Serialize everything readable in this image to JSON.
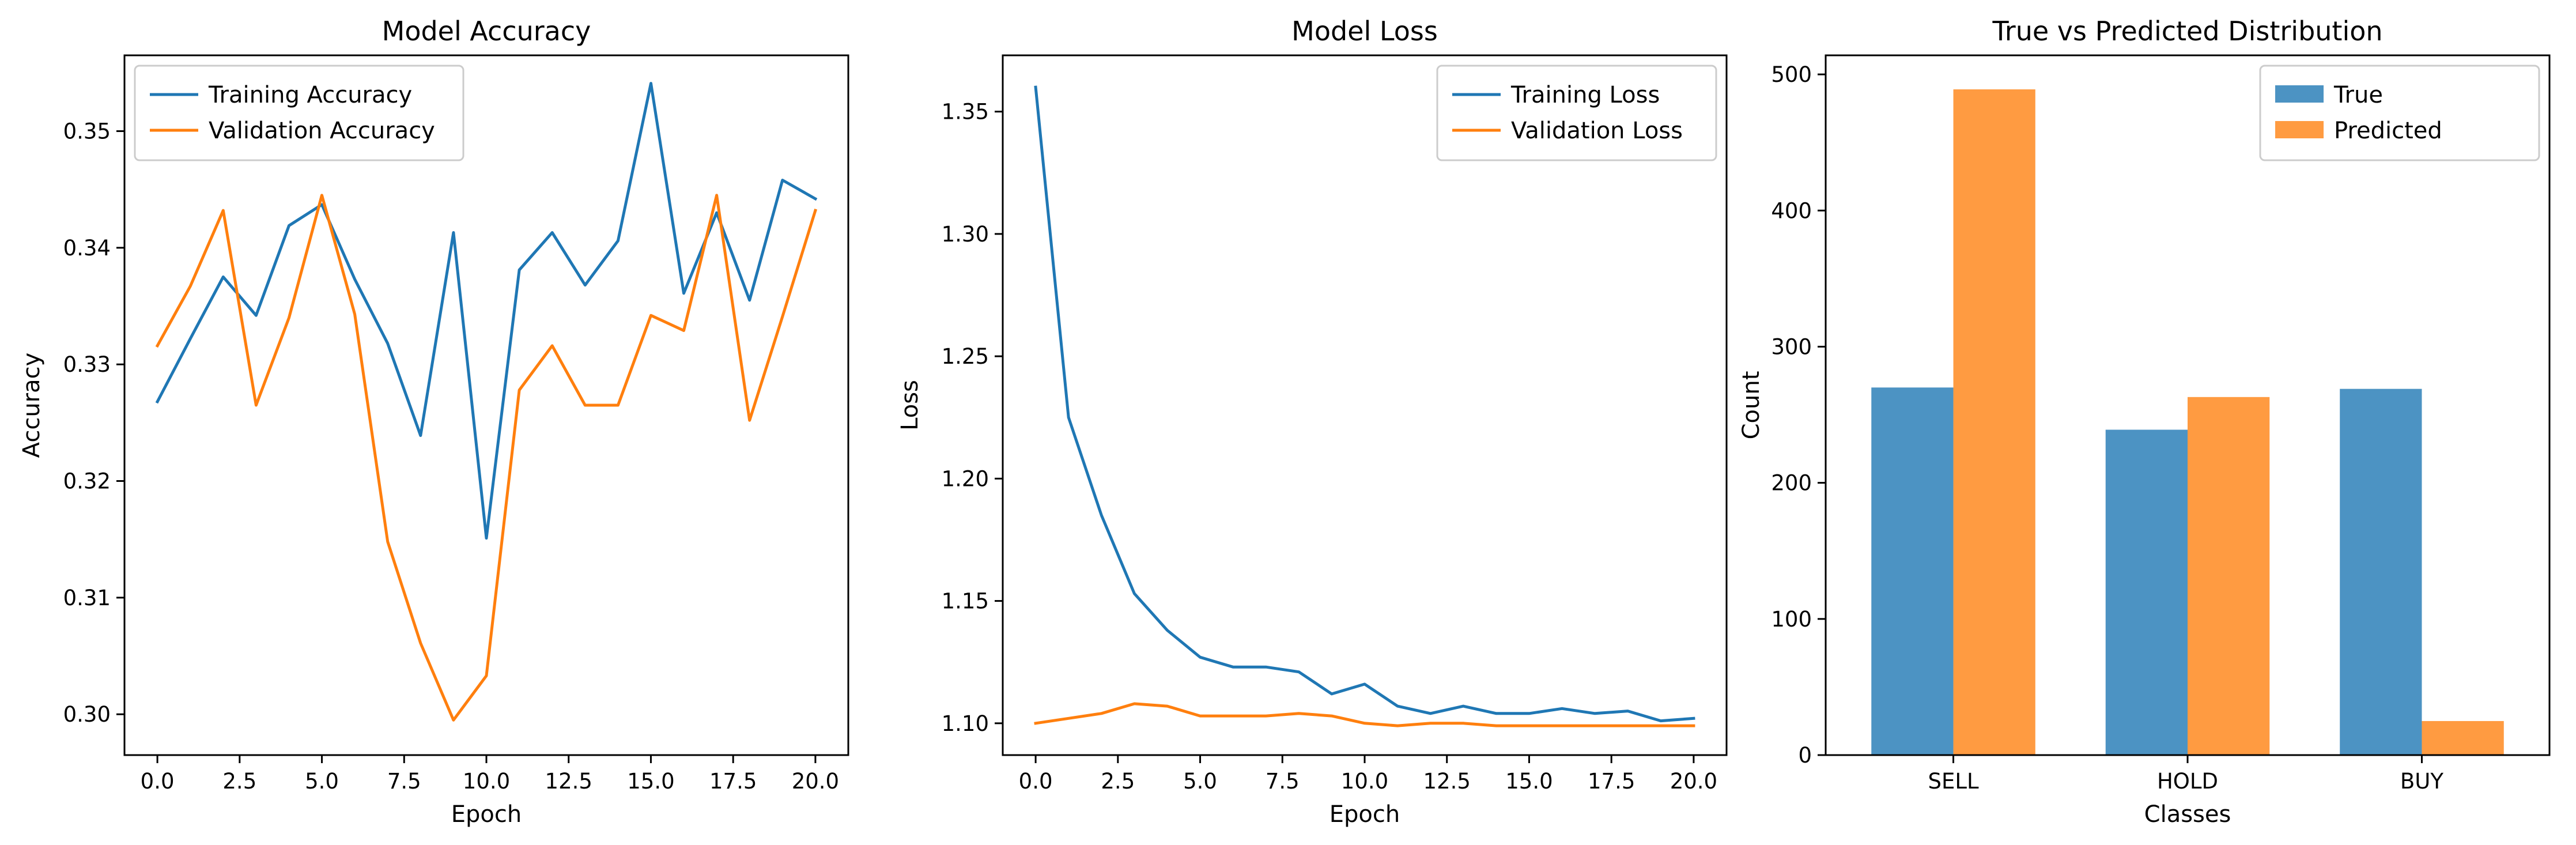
{
  "colors": {
    "train": "#1f77b4",
    "val": "#ff7f0e",
    "frame": "#000000",
    "legend_edge": "#cccccc"
  },
  "chart_data": [
    {
      "type": "line",
      "title": "Model Accuracy",
      "xlabel": "Epoch",
      "ylabel": "Accuracy",
      "xlim": [
        -1,
        21
      ],
      "ylim": [
        0.2965,
        0.3565
      ],
      "xticks": [
        0.0,
        2.5,
        5.0,
        7.5,
        10.0,
        12.5,
        15.0,
        17.5,
        20.0
      ],
      "xtick_labels": [
        "0.0",
        "2.5",
        "5.0",
        "7.5",
        "10.0",
        "12.5",
        "15.0",
        "17.5",
        "20.0"
      ],
      "yticks": [
        0.3,
        0.31,
        0.32,
        0.33,
        0.34,
        0.35
      ],
      "ytick_labels": [
        "0.30",
        "0.31",
        "0.32",
        "0.33",
        "0.34",
        "0.35"
      ],
      "legend_position": "upper left",
      "x": [
        0,
        1,
        2,
        3,
        4,
        5,
        6,
        7,
        8,
        9,
        10,
        11,
        12,
        13,
        14,
        15,
        16,
        17,
        18,
        19,
        20
      ],
      "series": [
        {
          "name": "Training Accuracy",
          "color": "#1f77b4",
          "values": [
            0.3268,
            0.3322,
            0.3375,
            0.3342,
            0.3419,
            0.3437,
            0.3373,
            0.3318,
            0.3239,
            0.3413,
            0.3151,
            0.3381,
            0.3413,
            0.3368,
            0.3406,
            0.3541,
            0.3361,
            0.343,
            0.3355,
            0.3458,
            0.3442
          ]
        },
        {
          "name": "Validation Accuracy",
          "color": "#ff7f0e",
          "values": [
            0.3316,
            0.3367,
            0.3432,
            0.3265,
            0.334,
            0.3445,
            0.3343,
            0.3148,
            0.3061,
            0.2995,
            0.3033,
            0.3278,
            0.3316,
            0.3265,
            0.3265,
            0.3342,
            0.3329,
            0.3445,
            0.3252,
            0.3341,
            0.3432
          ]
        }
      ]
    },
    {
      "type": "line",
      "title": "Model Loss",
      "xlabel": "Epoch",
      "ylabel": "Loss",
      "xlim": [
        -1,
        21
      ],
      "ylim": [
        1.087,
        1.373
      ],
      "xticks": [
        0.0,
        2.5,
        5.0,
        7.5,
        10.0,
        12.5,
        15.0,
        17.5,
        20.0
      ],
      "xtick_labels": [
        "0.0",
        "2.5",
        "5.0",
        "7.5",
        "10.0",
        "12.5",
        "15.0",
        "17.5",
        "20.0"
      ],
      "yticks": [
        1.1,
        1.15,
        1.2,
        1.25,
        1.3,
        1.35
      ],
      "ytick_labels": [
        "1.10",
        "1.15",
        "1.20",
        "1.25",
        "1.30",
        "1.35"
      ],
      "legend_position": "upper right",
      "x": [
        0,
        1,
        2,
        3,
        4,
        5,
        6,
        7,
        8,
        9,
        10,
        11,
        12,
        13,
        14,
        15,
        16,
        17,
        18,
        19,
        20
      ],
      "series": [
        {
          "name": "Training Loss",
          "color": "#1f77b4",
          "values": [
            1.36,
            1.225,
            1.185,
            1.153,
            1.138,
            1.127,
            1.123,
            1.123,
            1.121,
            1.112,
            1.116,
            1.107,
            1.104,
            1.107,
            1.104,
            1.104,
            1.106,
            1.104,
            1.105,
            1.101,
            1.102
          ]
        },
        {
          "name": "Validation Loss",
          "color": "#ff7f0e",
          "values": [
            1.1,
            1.102,
            1.104,
            1.108,
            1.107,
            1.103,
            1.103,
            1.103,
            1.104,
            1.103,
            1.1,
            1.099,
            1.1,
            1.1,
            1.099,
            1.099,
            1.099,
            1.099,
            1.099,
            1.099,
            1.099
          ]
        }
      ]
    },
    {
      "type": "bar",
      "title": "True vs Predicted Distribution",
      "xlabel": "Classes",
      "ylabel": "Count",
      "ylim": [
        0,
        514
      ],
      "yticks": [
        0,
        100,
        200,
        300,
        400,
        500
      ],
      "ytick_labels": [
        "0",
        "100",
        "200",
        "300",
        "400",
        "500"
      ],
      "legend_position": "upper right",
      "categories": [
        "SELL",
        "HOLD",
        "BUY"
      ],
      "series": [
        {
          "name": "True",
          "color": "#4c93c3",
          "values": [
            270,
            239,
            269
          ]
        },
        {
          "name": "Predicted",
          "color": "#ff9b41",
          "values": [
            489,
            263,
            25
          ]
        }
      ]
    }
  ]
}
